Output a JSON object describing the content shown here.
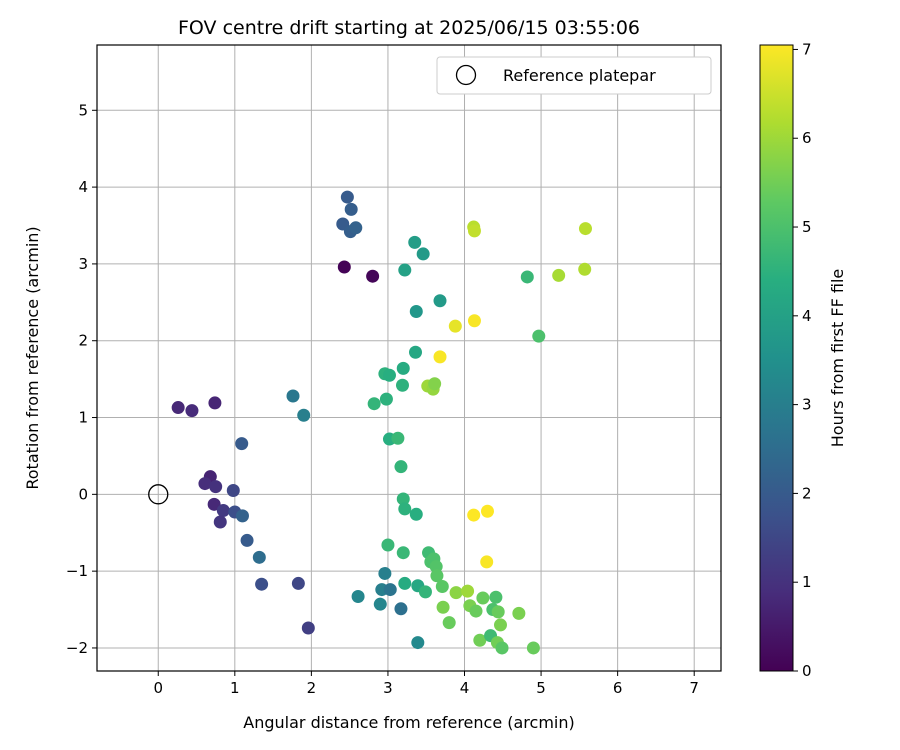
{
  "chart_data": {
    "type": "scatter",
    "title": "FOV centre drift starting at 2025/06/15 03:55:06",
    "xlabel": "Angular distance from reference (arcmin)",
    "ylabel": "Rotation from reference (arcmin)",
    "xlim": [
      -0.8,
      7.35
    ],
    "ylim": [
      -2.3,
      5.85
    ],
    "xticks": [
      0,
      1,
      2,
      3,
      4,
      5,
      6,
      7
    ],
    "yticks": [
      -2,
      -1,
      0,
      1,
      2,
      3,
      4,
      5
    ],
    "grid": true,
    "legend": {
      "position": "top-right",
      "entries": [
        "Reference platepar"
      ]
    },
    "reference_point": {
      "x": 0,
      "y": 0,
      "label": "Reference platepar"
    },
    "colorbar": {
      "label": "Hours from first FF file",
      "min": 0,
      "max": 7.05,
      "ticks": [
        0,
        1,
        2,
        3,
        4,
        5,
        6,
        7
      ],
      "colormap": "viridis"
    },
    "points": [
      {
        "x": 2.43,
        "y": 2.96,
        "h": 0.05
      },
      {
        "x": 2.8,
        "y": 2.84,
        "h": 0.1
      },
      {
        "x": 0.26,
        "y": 1.13,
        "h": 0.8
      },
      {
        "x": 0.44,
        "y": 1.09,
        "h": 0.85
      },
      {
        "x": 0.74,
        "y": 1.19,
        "h": 0.75
      },
      {
        "x": 0.68,
        "y": 0.23,
        "h": 0.7
      },
      {
        "x": 0.61,
        "y": 0.14,
        "h": 0.9
      },
      {
        "x": 0.75,
        "y": 0.1,
        "h": 1.0
      },
      {
        "x": 0.73,
        "y": -0.13,
        "h": 0.8
      },
      {
        "x": 0.85,
        "y": -0.21,
        "h": 1.2
      },
      {
        "x": 0.81,
        "y": -0.36,
        "h": 1.1
      },
      {
        "x": 0.98,
        "y": 0.05,
        "h": 1.5
      },
      {
        "x": 1.0,
        "y": -0.23,
        "h": 1.7
      },
      {
        "x": 1.09,
        "y": 0.66,
        "h": 2.0
      },
      {
        "x": 1.1,
        "y": -0.28,
        "h": 2.2
      },
      {
        "x": 1.16,
        "y": -0.6,
        "h": 2.0
      },
      {
        "x": 1.32,
        "y": -0.82,
        "h": 2.5
      },
      {
        "x": 1.35,
        "y": -1.17,
        "h": 1.7
      },
      {
        "x": 1.83,
        "y": -1.16,
        "h": 1.5
      },
      {
        "x": 1.96,
        "y": -1.74,
        "h": 1.3
      },
      {
        "x": 1.76,
        "y": 1.28,
        "h": 2.8
      },
      {
        "x": 1.9,
        "y": 1.03,
        "h": 3.0
      },
      {
        "x": 2.47,
        "y": 3.87,
        "h": 2.0
      },
      {
        "x": 2.52,
        "y": 3.71,
        "h": 2.1
      },
      {
        "x": 2.41,
        "y": 3.52,
        "h": 2.0
      },
      {
        "x": 2.51,
        "y": 3.42,
        "h": 2.1
      },
      {
        "x": 2.58,
        "y": 3.47,
        "h": 2.2
      },
      {
        "x": 2.61,
        "y": -1.33,
        "h": 3.2
      },
      {
        "x": 2.96,
        "y": -1.03,
        "h": 3.0
      },
      {
        "x": 2.92,
        "y": -1.24,
        "h": 3.0
      },
      {
        "x": 3.03,
        "y": -1.24,
        "h": 2.7
      },
      {
        "x": 2.9,
        "y": -1.43,
        "h": 3.2
      },
      {
        "x": 3.17,
        "y": -1.49,
        "h": 2.6
      },
      {
        "x": 3.39,
        "y": -1.93,
        "h": 3.3
      },
      {
        "x": 3.22,
        "y": 2.92,
        "h": 4.0
      },
      {
        "x": 3.35,
        "y": 3.28,
        "h": 3.9
      },
      {
        "x": 3.46,
        "y": 3.13,
        "h": 3.8
      },
      {
        "x": 3.37,
        "y": 2.38,
        "h": 3.7
      },
      {
        "x": 3.68,
        "y": 2.52,
        "h": 3.8
      },
      {
        "x": 3.36,
        "y": 1.85,
        "h": 4.2
      },
      {
        "x": 3.2,
        "y": 1.64,
        "h": 4.3
      },
      {
        "x": 2.96,
        "y": 1.57,
        "h": 4.5
      },
      {
        "x": 3.02,
        "y": 1.55,
        "h": 4.4
      },
      {
        "x": 3.19,
        "y": 1.42,
        "h": 4.5
      },
      {
        "x": 2.82,
        "y": 1.18,
        "h": 4.6
      },
      {
        "x": 2.98,
        "y": 1.24,
        "h": 4.5
      },
      {
        "x": 3.02,
        "y": 0.72,
        "h": 4.4
      },
      {
        "x": 3.13,
        "y": 0.73,
        "h": 4.7
      },
      {
        "x": 3.17,
        "y": 0.36,
        "h": 4.6
      },
      {
        "x": 3.2,
        "y": -0.06,
        "h": 4.6
      },
      {
        "x": 3.22,
        "y": -0.19,
        "h": 4.5
      },
      {
        "x": 3.37,
        "y": -0.26,
        "h": 4.4
      },
      {
        "x": 3.0,
        "y": -0.66,
        "h": 4.7
      },
      {
        "x": 3.2,
        "y": -0.76,
        "h": 4.7
      },
      {
        "x": 3.53,
        "y": -0.76,
        "h": 4.8
      },
      {
        "x": 3.56,
        "y": -0.88,
        "h": 5.0
      },
      {
        "x": 3.6,
        "y": -0.84,
        "h": 5.0
      },
      {
        "x": 3.63,
        "y": -0.94,
        "h": 5.1
      },
      {
        "x": 3.64,
        "y": -1.06,
        "h": 5.2
      },
      {
        "x": 3.22,
        "y": -1.16,
        "h": 4.3
      },
      {
        "x": 3.39,
        "y": -1.19,
        "h": 4.2
      },
      {
        "x": 3.49,
        "y": -1.27,
        "h": 4.6
      },
      {
        "x": 3.71,
        "y": -1.2,
        "h": 5.2
      },
      {
        "x": 3.72,
        "y": -1.47,
        "h": 5.6
      },
      {
        "x": 3.8,
        "y": -1.67,
        "h": 5.4
      },
      {
        "x": 3.89,
        "y": -1.28,
        "h": 5.8
      },
      {
        "x": 4.04,
        "y": -1.26,
        "h": 6.0
      },
      {
        "x": 4.07,
        "y": -1.45,
        "h": 5.6
      },
      {
        "x": 4.15,
        "y": -1.52,
        "h": 5.4
      },
      {
        "x": 4.2,
        "y": -1.9,
        "h": 5.5
      },
      {
        "x": 4.24,
        "y": -1.35,
        "h": 5.4
      },
      {
        "x": 4.34,
        "y": -1.84,
        "h": 4.8
      },
      {
        "x": 4.37,
        "y": -1.5,
        "h": 5.0
      },
      {
        "x": 4.41,
        "y": -1.34,
        "h": 5.0
      },
      {
        "x": 4.44,
        "y": -1.53,
        "h": 5.4
      },
      {
        "x": 4.47,
        "y": -1.7,
        "h": 5.6
      },
      {
        "x": 4.43,
        "y": -1.93,
        "h": 5.5
      },
      {
        "x": 4.49,
        "y": -2.0,
        "h": 5.2
      },
      {
        "x": 4.71,
        "y": -1.55,
        "h": 5.6
      },
      {
        "x": 4.9,
        "y": -2.0,
        "h": 5.4
      },
      {
        "x": 3.52,
        "y": 1.41,
        "h": 6.0
      },
      {
        "x": 3.59,
        "y": 1.37,
        "h": 5.9
      },
      {
        "x": 3.61,
        "y": 1.44,
        "h": 5.7
      },
      {
        "x": 3.68,
        "y": 1.79,
        "h": 7.0
      },
      {
        "x": 3.88,
        "y": 2.19,
        "h": 6.8
      },
      {
        "x": 4.13,
        "y": 2.26,
        "h": 7.0
      },
      {
        "x": 4.12,
        "y": 3.48,
        "h": 6.3
      },
      {
        "x": 4.13,
        "y": 3.43,
        "h": 6.4
      },
      {
        "x": 4.82,
        "y": 2.83,
        "h": 4.7
      },
      {
        "x": 4.97,
        "y": 2.06,
        "h": 5.0
      },
      {
        "x": 5.23,
        "y": 2.85,
        "h": 6.1
      },
      {
        "x": 5.57,
        "y": 2.93,
        "h": 6.2
      },
      {
        "x": 5.58,
        "y": 3.46,
        "h": 6.3
      },
      {
        "x": 4.12,
        "y": -0.27,
        "h": 7.05
      },
      {
        "x": 4.3,
        "y": -0.22,
        "h": 7.05
      },
      {
        "x": 4.29,
        "y": -0.88,
        "h": 7.0
      }
    ]
  }
}
